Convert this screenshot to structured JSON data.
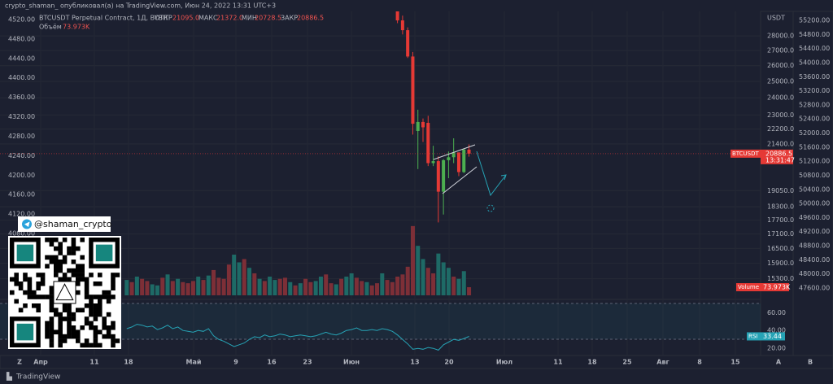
{
  "header": {
    "published": "crypto_shaman_ опубликовал(а) на TradingView.com, Июн 24, 2022 13:31 UTC+3"
  },
  "legend": {
    "symbol": "BTCUSDT Perpetual Contract, 1Д, BYBIT",
    "fields": [
      {
        "label": "ОТКР",
        "value": "21095.0"
      },
      {
        "label": "МАКС",
        "value": "21372.0"
      },
      {
        "label": "МИН",
        "value": "20728.5"
      },
      {
        "label": "ЗАКР",
        "value": "20886.5"
      }
    ],
    "volume_label": "Объём",
    "volume_value": "73.973K"
  },
  "price_chart": {
    "type": "candlestick",
    "log_scale": true,
    "axis_unit": "USDT",
    "ylim": [
      14680,
      29700
    ],
    "yticks": [
      {
        "value": 28000,
        "label": "28000.0"
      },
      {
        "value": 27000,
        "label": "27000.0"
      },
      {
        "value": 26000,
        "label": "26000.0"
      },
      {
        "value": 25000,
        "label": "25000.0"
      },
      {
        "value": 24000,
        "label": "24000.0"
      },
      {
        "value": 23000,
        "label": "23000.0"
      },
      {
        "value": 22200,
        "label": "22200.0"
      },
      {
        "value": 21400,
        "label": "21400.0"
      },
      {
        "value": 19050,
        "label": "19050.0"
      },
      {
        "value": 18300,
        "label": "18300.0"
      },
      {
        "value": 17700,
        "label": "17700.0"
      },
      {
        "value": 17100,
        "label": "17100.0"
      },
      {
        "value": 16500,
        "label": "16500.0"
      },
      {
        "value": 15900,
        "label": "15900.0"
      },
      {
        "value": 15300,
        "label": "15300.0"
      }
    ],
    "up_color": "#4caf50",
    "down_color": "#e53935",
    "candles": [
      {
        "open": 30100,
        "high": 30400,
        "low": 28900,
        "close": 29100
      },
      {
        "open": 29100,
        "high": 29450,
        "low": 28100,
        "close": 28400
      },
      {
        "open": 28400,
        "high": 28600,
        "low": 26500,
        "close": 26600
      },
      {
        "open": 26600,
        "high": 26900,
        "low": 21900,
        "close": 22500
      },
      {
        "open": 22100,
        "high": 23300,
        "low": 20100,
        "close": 22600
      },
      {
        "open": 22600,
        "high": 22800,
        "low": 21500,
        "close": 22300
      },
      {
        "open": 22550,
        "high": 22950,
        "low": 20250,
        "close": 20400
      },
      {
        "open": 20400,
        "high": 21300,
        "low": 20250,
        "close": 20500
      },
      {
        "open": 20500,
        "high": 20750,
        "low": 17600,
        "close": 19000
      },
      {
        "open": 19000,
        "high": 20600,
        "low": 17950,
        "close": 20550
      },
      {
        "open": 20550,
        "high": 21000,
        "low": 19650,
        "close": 20700
      },
      {
        "open": 20700,
        "high": 21700,
        "low": 20400,
        "close": 20950
      },
      {
        "open": 20950,
        "high": 20950,
        "low": 19750,
        "close": 19950
      },
      {
        "open": 19950,
        "high": 21150,
        "low": 19900,
        "close": 21100
      },
      {
        "open": 21095,
        "high": 21372,
        "low": 20728.5,
        "close": 20886.5
      }
    ],
    "last_price": {
      "symbol": "BTCUSDT",
      "value": 20886.5,
      "countdown": "13:31:47"
    }
  },
  "left_axis": {
    "lim": [
      3953,
      4535
    ],
    "ticks": [
      {
        "value": 4520,
        "label": "4520.00"
      },
      {
        "value": 4480,
        "label": "4480.00"
      },
      {
        "value": 4440,
        "label": "4440.00"
      },
      {
        "value": 4400,
        "label": "4400.00"
      },
      {
        "value": 4360,
        "label": "4360.00"
      },
      {
        "value": 4320,
        "label": "4320.00"
      },
      {
        "value": 4280,
        "label": "4280.00"
      },
      {
        "value": 4240,
        "label": "4240.00"
      },
      {
        "value": 4200,
        "label": "4200.00"
      },
      {
        "value": 4160,
        "label": "4160.00"
      },
      {
        "value": 4120,
        "label": "4120.00"
      },
      {
        "value": 4080,
        "label": "4080.00"
      }
    ]
  },
  "far_axis": {
    "lim": [
      47392,
      55431
    ],
    "ticks": [
      {
        "value": 55200,
        "label": "55200.00"
      },
      {
        "value": 54800,
        "label": "54800.00"
      },
      {
        "value": 54400,
        "label": "54400.00"
      },
      {
        "value": 54000,
        "label": "54000.00"
      },
      {
        "value": 53600,
        "label": "53600.00"
      },
      {
        "value": 53200,
        "label": "53200.00"
      },
      {
        "value": 52800,
        "label": "52800.00"
      },
      {
        "value": 52400,
        "label": "52400.00"
      },
      {
        "value": 52000,
        "label": "52000.00"
      },
      {
        "value": 51600,
        "label": "51600.00"
      },
      {
        "value": 51200,
        "label": "51200.00"
      },
      {
        "value": 50800,
        "label": "50800.00"
      },
      {
        "value": 50400,
        "label": "50400.00"
      },
      {
        "value": 50000,
        "label": "50000.00"
      },
      {
        "value": 49600,
        "label": "49600.00"
      },
      {
        "value": 49200,
        "label": "49200.00"
      },
      {
        "value": 48800,
        "label": "48800.00"
      },
      {
        "value": 48400,
        "label": "48400.00"
      },
      {
        "value": 48000,
        "label": "48000.00"
      },
      {
        "value": 47600,
        "label": "47600.00"
      }
    ]
  },
  "volume": {
    "tag": "Volume",
    "last": "73.973K",
    "values": [
      140,
      120,
      170,
      150,
      130,
      100,
      90,
      160,
      190,
      130,
      150,
      120,
      110,
      130,
      170,
      140,
      180,
      230,
      160,
      150,
      280,
      370,
      300,
      330,
      250,
      200,
      150,
      130,
      170,
      140,
      150,
      160,
      120,
      90,
      110,
      150,
      120,
      130,
      170,
      190,
      110,
      100,
      150,
      170,
      200,
      160,
      130,
      120,
      90,
      110,
      200,
      140,
      120,
      170,
      190,
      260,
      630,
      450,
      330,
      250,
      200,
      380,
      300,
      250,
      170,
      150,
      220,
      73.973
    ],
    "colors": [
      "#1e6a66",
      "#7d2f37",
      "#1e6a66",
      "#7d2f37",
      "#7d2f37",
      "#1e6a66",
      "#1e6a66",
      "#7d2f37",
      "#1e6a66",
      "#7d2f37",
      "#1e6a66",
      "#7d2f37",
      "#7d2f37",
      "#7d2f37",
      "#1e6a66",
      "#7d2f37",
      "#1e6a66",
      "#7d2f37",
      "#7d2f37",
      "#7d2f37",
      "#7d2f37",
      "#1e6a66",
      "#1e6a66",
      "#7d2f37",
      "#1e6a66",
      "#7d2f37",
      "#1e6a66",
      "#7d2f37",
      "#1e6a66",
      "#1e6a66",
      "#7d2f37",
      "#7d2f37",
      "#1e6a66",
      "#7d2f37",
      "#1e6a66",
      "#7d2f37",
      "#7d2f37",
      "#1e6a66",
      "#1e6a66",
      "#7d2f37",
      "#7d2f37",
      "#1e6a66",
      "#7d2f37",
      "#1e6a66",
      "#1e6a66",
      "#7d2f37",
      "#7d2f37",
      "#1e6a66",
      "#7d2f37",
      "#7d2f37",
      "#1e6a66",
      "#7d2f37",
      "#7d2f37",
      "#7d2f37",
      "#7d2f37",
      "#7d2f37",
      "#7d2f37",
      "#1e6a66",
      "#1e6a66",
      "#7d2f37",
      "#7d2f37",
      "#1e6a66",
      "#1e6a66",
      "#1e6a66",
      "#7d2f37",
      "#1e6a66",
      "#1e6a66",
      "#7d2f37"
    ]
  },
  "rsi": {
    "tag": "RSI",
    "last": "33.44",
    "color": "#26a3b5",
    "ylim": [
      12,
      73
    ],
    "yticks": [
      {
        "value": 60,
        "label": "60.00"
      },
      {
        "value": 40,
        "label": "40.00"
      },
      {
        "value": 20,
        "label": "20.00"
      }
    ],
    "values": [
      42,
      44,
      47,
      46,
      44,
      45,
      41,
      43,
      46,
      42,
      44,
      40,
      39,
      38,
      40,
      39,
      42,
      34,
      30,
      28,
      25,
      22,
      24,
      26,
      30,
      33,
      32,
      35,
      33,
      34,
      36,
      35,
      33,
      34,
      35,
      34,
      33,
      34,
      36,
      38,
      36,
      35,
      37,
      40,
      41,
      43,
      40,
      40,
      41,
      40,
      42,
      41,
      39,
      35,
      30,
      25,
      19,
      20,
      19,
      21,
      20,
      18,
      24,
      27,
      30,
      29,
      31,
      33.44
    ]
  },
  "x_axis": {
    "labels": [
      "Z",
      "Апр",
      "11",
      "18",
      "Май",
      "9",
      "16",
      "23",
      "Июн",
      "13",
      "20",
      "Июл",
      "11",
      "18",
      "25",
      "Авг",
      "8",
      "15",
      "A",
      "B"
    ]
  },
  "overlay": {
    "handle": "@shaman_crypto"
  },
  "footer": {
    "brand": "TradingView"
  }
}
